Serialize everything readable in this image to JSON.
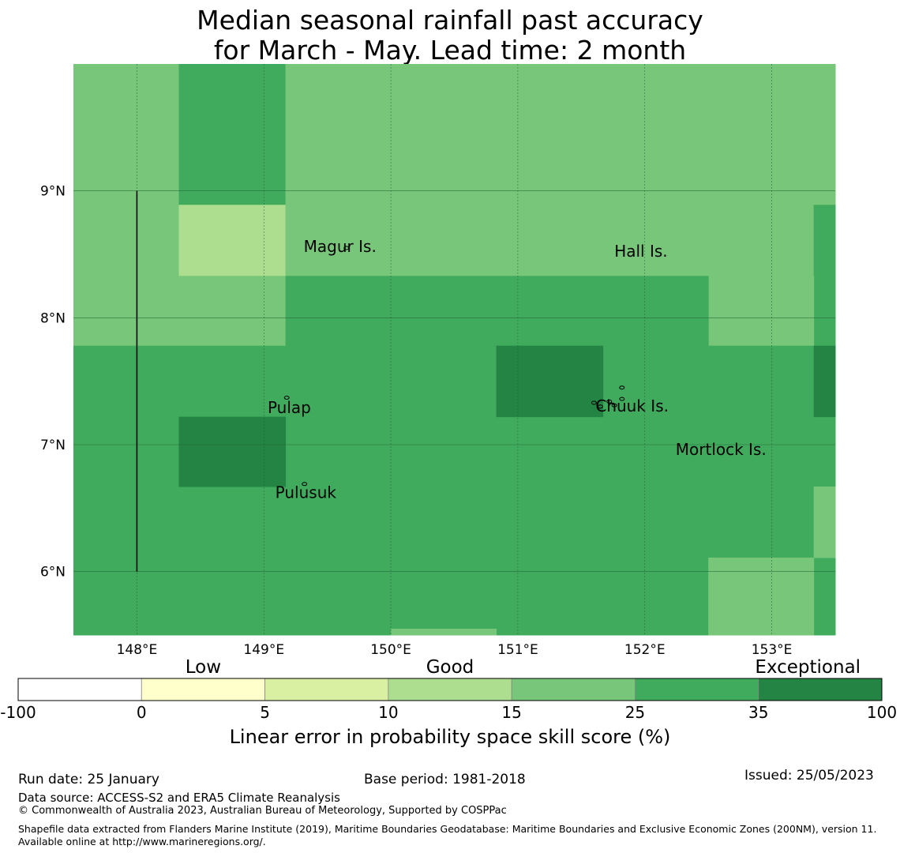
{
  "chart_data": {
    "type": "heatmap",
    "title_line1": "Median seasonal rainfall past accuracy",
    "title_line2": "for March - May. Lead time: 2 month",
    "xlim": [
      147.5,
      153.5
    ],
    "ylim": [
      5.5,
      10.0
    ],
    "x_ticks": [
      {
        "value": 148,
        "label": "148°E"
      },
      {
        "value": 149,
        "label": "149°E"
      },
      {
        "value": 150,
        "label": "150°E"
      },
      {
        "value": 151,
        "label": "151°E"
      },
      {
        "value": 152,
        "label": "152°E"
      },
      {
        "value": 153,
        "label": "153°E"
      }
    ],
    "y_ticks": [
      {
        "value": 6,
        "label": "6°N"
      },
      {
        "value": 7,
        "label": "7°N"
      },
      {
        "value": 8,
        "label": "8°N"
      },
      {
        "value": 9,
        "label": "9°N"
      }
    ],
    "cells": [
      {
        "lon": [
          147.5,
          148.33
        ],
        "lat": [
          7.78,
          10.0
        ],
        "level": 4
      },
      {
        "lon": [
          148.33,
          149.17
        ],
        "lat": [
          8.89,
          10.0
        ],
        "level": 5
      },
      {
        "lon": [
          148.33,
          149.17
        ],
        "lat": [
          8.33,
          8.89
        ],
        "level": 3
      },
      {
        "lon": [
          148.33,
          149.17
        ],
        "lat": [
          7.78,
          8.33
        ],
        "level": 4
      },
      {
        "lon": [
          149.17,
          153.5
        ],
        "lat": [
          8.33,
          10.0
        ],
        "level": 4
      },
      {
        "lon": [
          153.33,
          153.5
        ],
        "lat": [
          7.78,
          8.89
        ],
        "level": 5
      },
      {
        "lon": [
          152.5,
          153.33
        ],
        "lat": [
          7.78,
          8.33
        ],
        "level": 4
      },
      {
        "lon": [
          149.17,
          152.5
        ],
        "lat": [
          7.78,
          8.33
        ],
        "level": 5
      },
      {
        "lon": [
          147.5,
          153.5
        ],
        "lat": [
          5.5,
          7.78
        ],
        "level": 5
      },
      {
        "lon": [
          150.83,
          151.67
        ],
        "lat": [
          7.22,
          7.78
        ],
        "level": 6
      },
      {
        "lon": [
          153.33,
          153.5
        ],
        "lat": [
          7.22,
          7.78
        ],
        "level": 6
      },
      {
        "lon": [
          148.33,
          149.17
        ],
        "lat": [
          6.67,
          7.22
        ],
        "level": 6
      },
      {
        "lon": [
          153.33,
          153.5
        ],
        "lat": [
          6.11,
          6.67
        ],
        "level": 4
      },
      {
        "lon": [
          152.5,
          153.33
        ],
        "lat": [
          5.5,
          6.11
        ],
        "level": 4
      },
      {
        "lon": [
          150.0,
          150.83
        ],
        "lat": [
          5.5,
          5.55
        ],
        "level": 4
      }
    ],
    "boundary_line": {
      "lon": 148.0,
      "lat": [
        6.0,
        9.0
      ]
    },
    "places": [
      {
        "name": "Magur Is.",
        "lon": 149.6,
        "lat": 8.52
      },
      {
        "name": "Hall Is.",
        "lon": 151.97,
        "lat": 8.48
      },
      {
        "name": "Pulap",
        "lon": 149.2,
        "lat": 7.25
      },
      {
        "name": "Chuuk Is.",
        "lon": 151.9,
        "lat": 7.26
      },
      {
        "name": "Mortlock Is.",
        "lon": 152.6,
        "lat": 6.92
      },
      {
        "name": "Pulusuk",
        "lon": 149.33,
        "lat": 6.58
      }
    ],
    "colorbar": {
      "boundaries": [
        "-100",
        "0",
        "5",
        "10",
        "15",
        "25",
        "35",
        "100"
      ],
      "colors": [
        "#ffffff",
        "#ffffcc",
        "#d9f0a3",
        "#addd8e",
        "#78c679",
        "#41ab5d",
        "#238443"
      ],
      "category_labels": [
        {
          "label": "Low",
          "pos": 1.5
        },
        {
          "label": "Good",
          "pos": 3.5
        },
        {
          "label": "Exceptional",
          "pos": 6.4
        }
      ],
      "xlabel": "Linear error in probability space skill score (%)"
    }
  },
  "footer": {
    "run_date": "Run date: 25 January",
    "base_period": "Base period: 1981-2018",
    "issued": "Issued: 25/05/2023",
    "data_source": "Data source: ACCESS-S2 and ERA5 Climate Reanalysis",
    "copyright": "© Commonwealth of Australia 2023, Australian Bureau of Meteorology, Supported by COSPPac",
    "shapefile": "Shapefile data extracted from Flanders Marine Institute (2019), Maritime Boundaries Geodatabase: Maritime Boundaries and Exclusive Economic Zones (200NM), version 11. Available online at http://www.marineregions.org/."
  }
}
